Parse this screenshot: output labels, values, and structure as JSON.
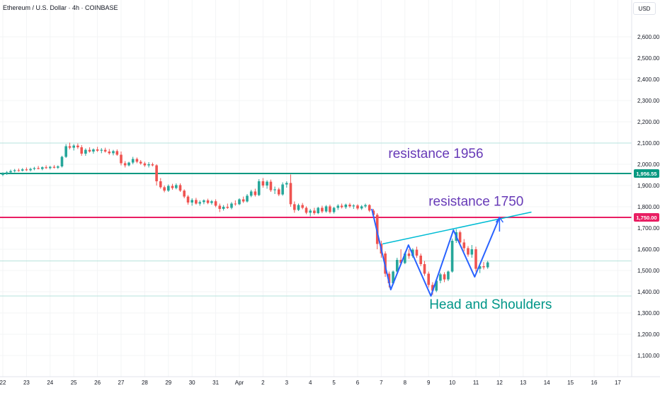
{
  "header": {
    "symbol_title": "Ethereum / U.S. Dollar · 4h · COINBASE",
    "currency": "USD"
  },
  "chart_data": {
    "type": "candlestick",
    "title": "Ethereum / U.S. Dollar · 4h · COINBASE",
    "ylim": [
      1040,
      2700
    ],
    "y_ticks": [
      {
        "value": 1100,
        "label": "1,100.00"
      },
      {
        "value": 1200,
        "label": "1,200.00"
      },
      {
        "value": 1300,
        "label": "1,300.00"
      },
      {
        "value": 1400,
        "label": "1,400.00"
      },
      {
        "value": 1500,
        "label": "1,500.00"
      },
      {
        "value": 1600,
        "label": "1,600.00"
      },
      {
        "value": 1700,
        "label": "1,700.00"
      },
      {
        "value": 1800,
        "label": "1,800.00"
      },
      {
        "value": 1900,
        "label": "1,900.00"
      },
      {
        "value": 2000,
        "label": "2,000.00"
      },
      {
        "value": 2100,
        "label": "2,100.00"
      },
      {
        "value": 2200,
        "label": "2,200.00"
      },
      {
        "value": 2300,
        "label": "2,300.00"
      },
      {
        "value": 2400,
        "label": "2,400.00"
      },
      {
        "value": 2500,
        "label": "2,500.00"
      },
      {
        "value": 2600,
        "label": "2,600.00"
      }
    ],
    "x_day_range": [
      22,
      48
    ],
    "x_ticks": [
      {
        "day": 22,
        "label": "22"
      },
      {
        "day": 23,
        "label": "23"
      },
      {
        "day": 24,
        "label": "24"
      },
      {
        "day": 25,
        "label": "25"
      },
      {
        "day": 26,
        "label": "26"
      },
      {
        "day": 27,
        "label": "27"
      },
      {
        "day": 28,
        "label": "28"
      },
      {
        "day": 29,
        "label": "29"
      },
      {
        "day": 30,
        "label": "30"
      },
      {
        "day": 31,
        "label": "31"
      },
      {
        "day": 32,
        "label": "Apr"
      },
      {
        "day": 33,
        "label": "2"
      },
      {
        "day": 34,
        "label": "3"
      },
      {
        "day": 35,
        "label": "4"
      },
      {
        "day": 36,
        "label": "5"
      },
      {
        "day": 37,
        "label": "6"
      },
      {
        "day": 38,
        "label": "7"
      },
      {
        "day": 39,
        "label": "8"
      },
      {
        "day": 40,
        "label": "9"
      },
      {
        "day": 41,
        "label": "10"
      },
      {
        "day": 42,
        "label": "11"
      },
      {
        "day": 43,
        "label": "12"
      },
      {
        "day": 44,
        "label": "13"
      },
      {
        "day": 45,
        "label": "14"
      },
      {
        "day": 46,
        "label": "15"
      },
      {
        "day": 47,
        "label": "16"
      },
      {
        "day": 48,
        "label": "17"
      }
    ],
    "colors": {
      "up": "#26a69a",
      "down": "#ef5350",
      "resistance_1956": "#089981",
      "resistance_1750": "#e91e63",
      "pattern": "#2962ff",
      "neckline": "#00bcd4",
      "label_resistance": "#673ab7",
      "label_pattern": "#009688"
    },
    "candles": [
      {
        "d": 22.0,
        "o": 1950,
        "h": 1962,
        "l": 1944,
        "c": 1956
      },
      {
        "d": 22.17,
        "o": 1956,
        "h": 1968,
        "l": 1950,
        "c": 1962
      },
      {
        "d": 22.33,
        "o": 1962,
        "h": 1975,
        "l": 1956,
        "c": 1968
      },
      {
        "d": 22.5,
        "o": 1968,
        "h": 1978,
        "l": 1962,
        "c": 1972
      },
      {
        "d": 22.67,
        "o": 1972,
        "h": 1980,
        "l": 1965,
        "c": 1970
      },
      {
        "d": 22.83,
        "o": 1970,
        "h": 1982,
        "l": 1966,
        "c": 1976
      },
      {
        "d": 23.0,
        "o": 1976,
        "h": 1985,
        "l": 1968,
        "c": 1972
      },
      {
        "d": 23.17,
        "o": 1972,
        "h": 1984,
        "l": 1966,
        "c": 1978
      },
      {
        "d": 23.33,
        "o": 1978,
        "h": 1988,
        "l": 1972,
        "c": 1982
      },
      {
        "d": 23.5,
        "o": 1982,
        "h": 1992,
        "l": 1976,
        "c": 1978
      },
      {
        "d": 23.67,
        "o": 1978,
        "h": 1990,
        "l": 1972,
        "c": 1986
      },
      {
        "d": 23.83,
        "o": 1986,
        "h": 1995,
        "l": 1978,
        "c": 1982
      },
      {
        "d": 24.0,
        "o": 1982,
        "h": 1992,
        "l": 1976,
        "c": 1988
      },
      {
        "d": 24.17,
        "o": 1988,
        "h": 1996,
        "l": 1980,
        "c": 1984
      },
      {
        "d": 24.33,
        "o": 1984,
        "h": 1995,
        "l": 1978,
        "c": 1990
      },
      {
        "d": 24.5,
        "o": 1990,
        "h": 2040,
        "l": 1985,
        "c": 2035
      },
      {
        "d": 24.67,
        "o": 2035,
        "h": 2095,
        "l": 2030,
        "c": 2085
      },
      {
        "d": 24.83,
        "o": 2085,
        "h": 2102,
        "l": 2070,
        "c": 2078
      },
      {
        "d": 25.0,
        "o": 2078,
        "h": 2095,
        "l": 2065,
        "c": 2088
      },
      {
        "d": 25.17,
        "o": 2088,
        "h": 2098,
        "l": 2072,
        "c": 2080
      },
      {
        "d": 25.33,
        "o": 2080,
        "h": 2090,
        "l": 2040,
        "c": 2050
      },
      {
        "d": 25.5,
        "o": 2050,
        "h": 2075,
        "l": 2040,
        "c": 2068
      },
      {
        "d": 25.67,
        "o": 2068,
        "h": 2080,
        "l": 2055,
        "c": 2060
      },
      {
        "d": 25.83,
        "o": 2060,
        "h": 2075,
        "l": 2050,
        "c": 2070
      },
      {
        "d": 26.0,
        "o": 2070,
        "h": 2082,
        "l": 2058,
        "c": 2064
      },
      {
        "d": 26.17,
        "o": 2064,
        "h": 2076,
        "l": 2052,
        "c": 2068
      },
      {
        "d": 26.33,
        "o": 2068,
        "h": 2078,
        "l": 2055,
        "c": 2060
      },
      {
        "d": 26.5,
        "o": 2060,
        "h": 2072,
        "l": 2045,
        "c": 2052
      },
      {
        "d": 26.67,
        "o": 2052,
        "h": 2068,
        "l": 2042,
        "c": 2062
      },
      {
        "d": 26.83,
        "o": 2062,
        "h": 2070,
        "l": 2040,
        "c": 2045
      },
      {
        "d": 27.0,
        "o": 2045,
        "h": 2060,
        "l": 1995,
        "c": 2005
      },
      {
        "d": 27.17,
        "o": 2005,
        "h": 2015,
        "l": 1985,
        "c": 1995
      },
      {
        "d": 27.33,
        "o": 1995,
        "h": 2012,
        "l": 1990,
        "c": 2008
      },
      {
        "d": 27.5,
        "o": 2008,
        "h": 2035,
        "l": 2000,
        "c": 2025
      },
      {
        "d": 27.67,
        "o": 2025,
        "h": 2032,
        "l": 2005,
        "c": 2012
      },
      {
        "d": 27.83,
        "o": 2012,
        "h": 2020,
        "l": 1998,
        "c": 2004
      },
      {
        "d": 28.0,
        "o": 2004,
        "h": 2012,
        "l": 1988,
        "c": 1995
      },
      {
        "d": 28.17,
        "o": 1995,
        "h": 2010,
        "l": 1985,
        "c": 2000
      },
      {
        "d": 28.33,
        "o": 2000,
        "h": 2008,
        "l": 1990,
        "c": 1995
      },
      {
        "d": 28.5,
        "o": 1995,
        "h": 2000,
        "l": 1900,
        "c": 1920
      },
      {
        "d": 28.67,
        "o": 1920,
        "h": 1935,
        "l": 1885,
        "c": 1892
      },
      {
        "d": 28.83,
        "o": 1892,
        "h": 1900,
        "l": 1868,
        "c": 1876
      },
      {
        "d": 29.0,
        "o": 1876,
        "h": 1905,
        "l": 1870,
        "c": 1898
      },
      {
        "d": 29.17,
        "o": 1898,
        "h": 1908,
        "l": 1880,
        "c": 1888
      },
      {
        "d": 29.33,
        "o": 1888,
        "h": 1910,
        "l": 1882,
        "c": 1902
      },
      {
        "d": 29.5,
        "o": 1902,
        "h": 1910,
        "l": 1870,
        "c": 1876
      },
      {
        "d": 29.67,
        "o": 1876,
        "h": 1882,
        "l": 1840,
        "c": 1848
      },
      {
        "d": 29.83,
        "o": 1848,
        "h": 1855,
        "l": 1810,
        "c": 1820
      },
      {
        "d": 30.0,
        "o": 1820,
        "h": 1840,
        "l": 1805,
        "c": 1832
      },
      {
        "d": 30.17,
        "o": 1832,
        "h": 1842,
        "l": 1810,
        "c": 1815
      },
      {
        "d": 30.33,
        "o": 1815,
        "h": 1830,
        "l": 1805,
        "c": 1822
      },
      {
        "d": 30.5,
        "o": 1822,
        "h": 1835,
        "l": 1812,
        "c": 1830
      },
      {
        "d": 30.67,
        "o": 1830,
        "h": 1838,
        "l": 1812,
        "c": 1818
      },
      {
        "d": 30.83,
        "o": 1818,
        "h": 1832,
        "l": 1810,
        "c": 1826
      },
      {
        "d": 31.0,
        "o": 1826,
        "h": 1835,
        "l": 1798,
        "c": 1805
      },
      {
        "d": 31.17,
        "o": 1805,
        "h": 1815,
        "l": 1775,
        "c": 1790
      },
      {
        "d": 31.33,
        "o": 1790,
        "h": 1808,
        "l": 1782,
        "c": 1800
      },
      {
        "d": 31.5,
        "o": 1800,
        "h": 1815,
        "l": 1790,
        "c": 1795
      },
      {
        "d": 31.67,
        "o": 1795,
        "h": 1822,
        "l": 1788,
        "c": 1815
      },
      {
        "d": 31.83,
        "o": 1815,
        "h": 1830,
        "l": 1805,
        "c": 1812
      },
      {
        "d": 32.0,
        "o": 1812,
        "h": 1840,
        "l": 1808,
        "c": 1835
      },
      {
        "d": 32.17,
        "o": 1835,
        "h": 1848,
        "l": 1818,
        "c": 1825
      },
      {
        "d": 32.33,
        "o": 1825,
        "h": 1860,
        "l": 1820,
        "c": 1852
      },
      {
        "d": 32.5,
        "o": 1852,
        "h": 1880,
        "l": 1845,
        "c": 1872
      },
      {
        "d": 32.67,
        "o": 1872,
        "h": 1885,
        "l": 1848,
        "c": 1855
      },
      {
        "d": 32.83,
        "o": 1855,
        "h": 1930,
        "l": 1850,
        "c": 1920
      },
      {
        "d": 33.0,
        "o": 1920,
        "h": 1935,
        "l": 1890,
        "c": 1900
      },
      {
        "d": 33.17,
        "o": 1900,
        "h": 1925,
        "l": 1885,
        "c": 1918
      },
      {
        "d": 33.33,
        "o": 1918,
        "h": 1928,
        "l": 1870,
        "c": 1878
      },
      {
        "d": 33.5,
        "o": 1878,
        "h": 1895,
        "l": 1860,
        "c": 1882
      },
      {
        "d": 33.67,
        "o": 1882,
        "h": 1890,
        "l": 1850,
        "c": 1858
      },
      {
        "d": 33.83,
        "o": 1858,
        "h": 1915,
        "l": 1852,
        "c": 1905
      },
      {
        "d": 34.0,
        "o": 1905,
        "h": 1920,
        "l": 1890,
        "c": 1912
      },
      {
        "d": 34.17,
        "o": 1912,
        "h": 1952,
        "l": 1800,
        "c": 1812
      },
      {
        "d": 34.33,
        "o": 1812,
        "h": 1825,
        "l": 1772,
        "c": 1785
      },
      {
        "d": 34.5,
        "o": 1785,
        "h": 1815,
        "l": 1780,
        "c": 1808
      },
      {
        "d": 34.67,
        "o": 1808,
        "h": 1818,
        "l": 1788,
        "c": 1795
      },
      {
        "d": 34.83,
        "o": 1795,
        "h": 1802,
        "l": 1765,
        "c": 1772
      },
      {
        "d": 35.0,
        "o": 1772,
        "h": 1790,
        "l": 1755,
        "c": 1782
      },
      {
        "d": 35.17,
        "o": 1782,
        "h": 1795,
        "l": 1762,
        "c": 1770
      },
      {
        "d": 35.33,
        "o": 1770,
        "h": 1800,
        "l": 1765,
        "c": 1795
      },
      {
        "d": 35.5,
        "o": 1795,
        "h": 1805,
        "l": 1770,
        "c": 1778
      },
      {
        "d": 35.67,
        "o": 1778,
        "h": 1808,
        "l": 1772,
        "c": 1802
      },
      {
        "d": 35.83,
        "o": 1802,
        "h": 1810,
        "l": 1768,
        "c": 1775
      },
      {
        "d": 36.0,
        "o": 1775,
        "h": 1800,
        "l": 1768,
        "c": 1795
      },
      {
        "d": 36.17,
        "o": 1795,
        "h": 1812,
        "l": 1785,
        "c": 1805
      },
      {
        "d": 36.33,
        "o": 1805,
        "h": 1815,
        "l": 1792,
        "c": 1798
      },
      {
        "d": 36.5,
        "o": 1798,
        "h": 1815,
        "l": 1790,
        "c": 1810
      },
      {
        "d": 36.67,
        "o": 1810,
        "h": 1818,
        "l": 1795,
        "c": 1802
      },
      {
        "d": 36.83,
        "o": 1802,
        "h": 1812,
        "l": 1790,
        "c": 1806
      },
      {
        "d": 37.0,
        "o": 1806,
        "h": 1812,
        "l": 1785,
        "c": 1792
      },
      {
        "d": 37.17,
        "o": 1792,
        "h": 1808,
        "l": 1785,
        "c": 1802
      },
      {
        "d": 37.33,
        "o": 1802,
        "h": 1815,
        "l": 1795,
        "c": 1808
      },
      {
        "d": 37.5,
        "o": 1808,
        "h": 1812,
        "l": 1775,
        "c": 1782
      },
      {
        "d": 37.67,
        "o": 1782,
        "h": 1790,
        "l": 1755,
        "c": 1762
      },
      {
        "d": 37.83,
        "o": 1762,
        "h": 1770,
        "l": 1600,
        "c": 1625
      },
      {
        "d": 38.0,
        "o": 1625,
        "h": 1640,
        "l": 1560,
        "c": 1580
      },
      {
        "d": 38.17,
        "o": 1580,
        "h": 1590,
        "l": 1470,
        "c": 1485
      },
      {
        "d": 38.33,
        "o": 1485,
        "h": 1495,
        "l": 1420,
        "c": 1440
      },
      {
        "d": 38.5,
        "o": 1440,
        "h": 1500,
        "l": 1432,
        "c": 1495
      },
      {
        "d": 38.67,
        "o": 1495,
        "h": 1560,
        "l": 1488,
        "c": 1550
      },
      {
        "d": 38.83,
        "o": 1550,
        "h": 1600,
        "l": 1525,
        "c": 1535
      },
      {
        "d": 39.0,
        "o": 1535,
        "h": 1588,
        "l": 1530,
        "c": 1580
      },
      {
        "d": 39.17,
        "o": 1580,
        "h": 1600,
        "l": 1555,
        "c": 1568
      },
      {
        "d": 39.33,
        "o": 1568,
        "h": 1605,
        "l": 1560,
        "c": 1598
      },
      {
        "d": 39.5,
        "o": 1598,
        "h": 1612,
        "l": 1560,
        "c": 1570
      },
      {
        "d": 39.67,
        "o": 1570,
        "h": 1580,
        "l": 1520,
        "c": 1530
      },
      {
        "d": 39.83,
        "o": 1530,
        "h": 1545,
        "l": 1475,
        "c": 1485
      },
      {
        "d": 40.0,
        "o": 1485,
        "h": 1495,
        "l": 1420,
        "c": 1432
      },
      {
        "d": 40.17,
        "o": 1432,
        "h": 1445,
        "l": 1385,
        "c": 1405
      },
      {
        "d": 40.33,
        "o": 1405,
        "h": 1460,
        "l": 1398,
        "c": 1452
      },
      {
        "d": 40.5,
        "o": 1452,
        "h": 1490,
        "l": 1440,
        "c": 1482
      },
      {
        "d": 40.67,
        "o": 1482,
        "h": 1492,
        "l": 1445,
        "c": 1458
      },
      {
        "d": 40.83,
        "o": 1458,
        "h": 1500,
        "l": 1450,
        "c": 1495
      },
      {
        "d": 41.0,
        "o": 1495,
        "h": 1650,
        "l": 1490,
        "c": 1640
      },
      {
        "d": 41.17,
        "o": 1640,
        "h": 1695,
        "l": 1630,
        "c": 1680
      },
      {
        "d": 41.33,
        "o": 1680,
        "h": 1688,
        "l": 1620,
        "c": 1632
      },
      {
        "d": 41.5,
        "o": 1632,
        "h": 1648,
        "l": 1590,
        "c": 1605
      },
      {
        "d": 41.67,
        "o": 1605,
        "h": 1615,
        "l": 1565,
        "c": 1575
      },
      {
        "d": 41.83,
        "o": 1575,
        "h": 1620,
        "l": 1560,
        "c": 1600
      },
      {
        "d": 42.0,
        "o": 1600,
        "h": 1612,
        "l": 1495,
        "c": 1508
      },
      {
        "d": 42.17,
        "o": 1508,
        "h": 1525,
        "l": 1488,
        "c": 1520
      },
      {
        "d": 42.33,
        "o": 1520,
        "h": 1540,
        "l": 1505,
        "c": 1515
      },
      {
        "d": 42.5,
        "o": 1515,
        "h": 1545,
        "l": 1508,
        "c": 1538
      }
    ],
    "horizontal_lines": [
      {
        "value": 1956.55,
        "label": "1,956.55",
        "style": "resistance_1956"
      },
      {
        "value": 1750.0,
        "label": "1,750.00",
        "style": "resistance_1750"
      }
    ],
    "reference_lines": [
      {
        "value": 2100
      },
      {
        "value": 1545
      },
      {
        "value": 1380
      }
    ],
    "pattern_path": [
      {
        "d": 37.6,
        "v": 1790
      },
      {
        "d": 38.4,
        "v": 1410
      },
      {
        "d": 39.15,
        "v": 1620
      },
      {
        "d": 40.1,
        "v": 1380
      },
      {
        "d": 41.05,
        "v": 1690
      },
      {
        "d": 41.95,
        "v": 1470
      },
      {
        "d": 43.0,
        "v": 1750
      }
    ],
    "pattern_arrow_end": {
      "d": 43.0,
      "v": 1750
    },
    "neckline": [
      {
        "d": 38.05,
        "v": 1625
      },
      {
        "d": 44.35,
        "v": 1775
      }
    ],
    "annotations": [
      {
        "text": "resistance 1956",
        "d": 38.3,
        "v": 2030,
        "style": "label_resistance"
      },
      {
        "text": "resistance 1750",
        "d": 40.0,
        "v": 1805,
        "style": "label_resistance"
      },
      {
        "text": "Head and Shoulders",
        "d": 40.03,
        "v": 1320,
        "style": "label_pattern"
      }
    ]
  }
}
